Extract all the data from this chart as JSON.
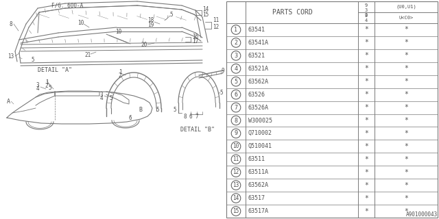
{
  "bg_color": "#ffffff",
  "table_header": "PARTS CORD",
  "rows": [
    [
      "1",
      "63541",
      "*",
      "*"
    ],
    [
      "2",
      "63541A",
      "*",
      "*"
    ],
    [
      "3",
      "63521",
      "*",
      "*"
    ],
    [
      "4",
      "63521A",
      "*",
      "*"
    ],
    [
      "5",
      "63562A",
      "*",
      "*"
    ],
    [
      "6",
      "63526",
      "*",
      "*"
    ],
    [
      "7",
      "63526A",
      "*",
      "*"
    ],
    [
      "8",
      "W300025",
      "*",
      "*"
    ],
    [
      "9",
      "Q710002",
      "*",
      "*"
    ],
    [
      "10",
      "Q510041",
      "*",
      "*"
    ],
    [
      "11",
      "63511",
      "*",
      "*"
    ],
    [
      "12",
      "63511A",
      "*",
      "*"
    ],
    [
      "13",
      "63562A",
      "*",
      "*"
    ],
    [
      "14",
      "63517",
      "*",
      "*"
    ],
    [
      "15",
      "63517A",
      "*",
      "*"
    ]
  ],
  "diagram_label": "F/G. 600-A",
  "detail_a": "DETAIL \"A\"",
  "detail_b": "DETAIL \"B\"",
  "footer": "A901000043",
  "line_color": "#787878",
  "text_color": "#505050"
}
